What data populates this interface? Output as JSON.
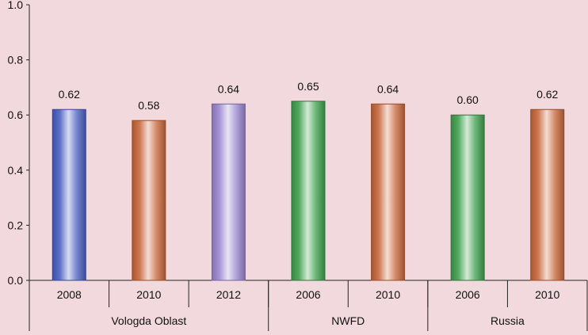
{
  "chart_data": {
    "type": "bar",
    "title": "",
    "xlabel": "",
    "ylabel": "",
    "ylim": [
      0,
      1.0
    ],
    "y_ticks": [
      "0.0",
      "0.2",
      "0.4",
      "0.6",
      "0.8",
      "1.0"
    ],
    "grid": false,
    "legend": "none",
    "categories": [
      "2008",
      "2010",
      "2012",
      "2006",
      "2010",
      "2006",
      "2010"
    ],
    "groups": [
      {
        "label": "Vologda Oblast",
        "span": 3
      },
      {
        "label": "NWFD",
        "span": 2
      },
      {
        "label": "Russia",
        "span": 2
      }
    ],
    "values": [
      0.62,
      0.58,
      0.64,
      0.65,
      0.64,
      0.6,
      0.62
    ],
    "data_labels": [
      "0.62",
      "0.58",
      "0.64",
      "0.65",
      "0.64",
      "0.60",
      "0.62"
    ],
    "bar_colors": [
      "#4a5fc1",
      "#c7663a",
      "#9a86cf",
      "#3f9f4d",
      "#c7663a",
      "#3f9f4d",
      "#c7663a"
    ],
    "background_color": "#f2d9de"
  }
}
